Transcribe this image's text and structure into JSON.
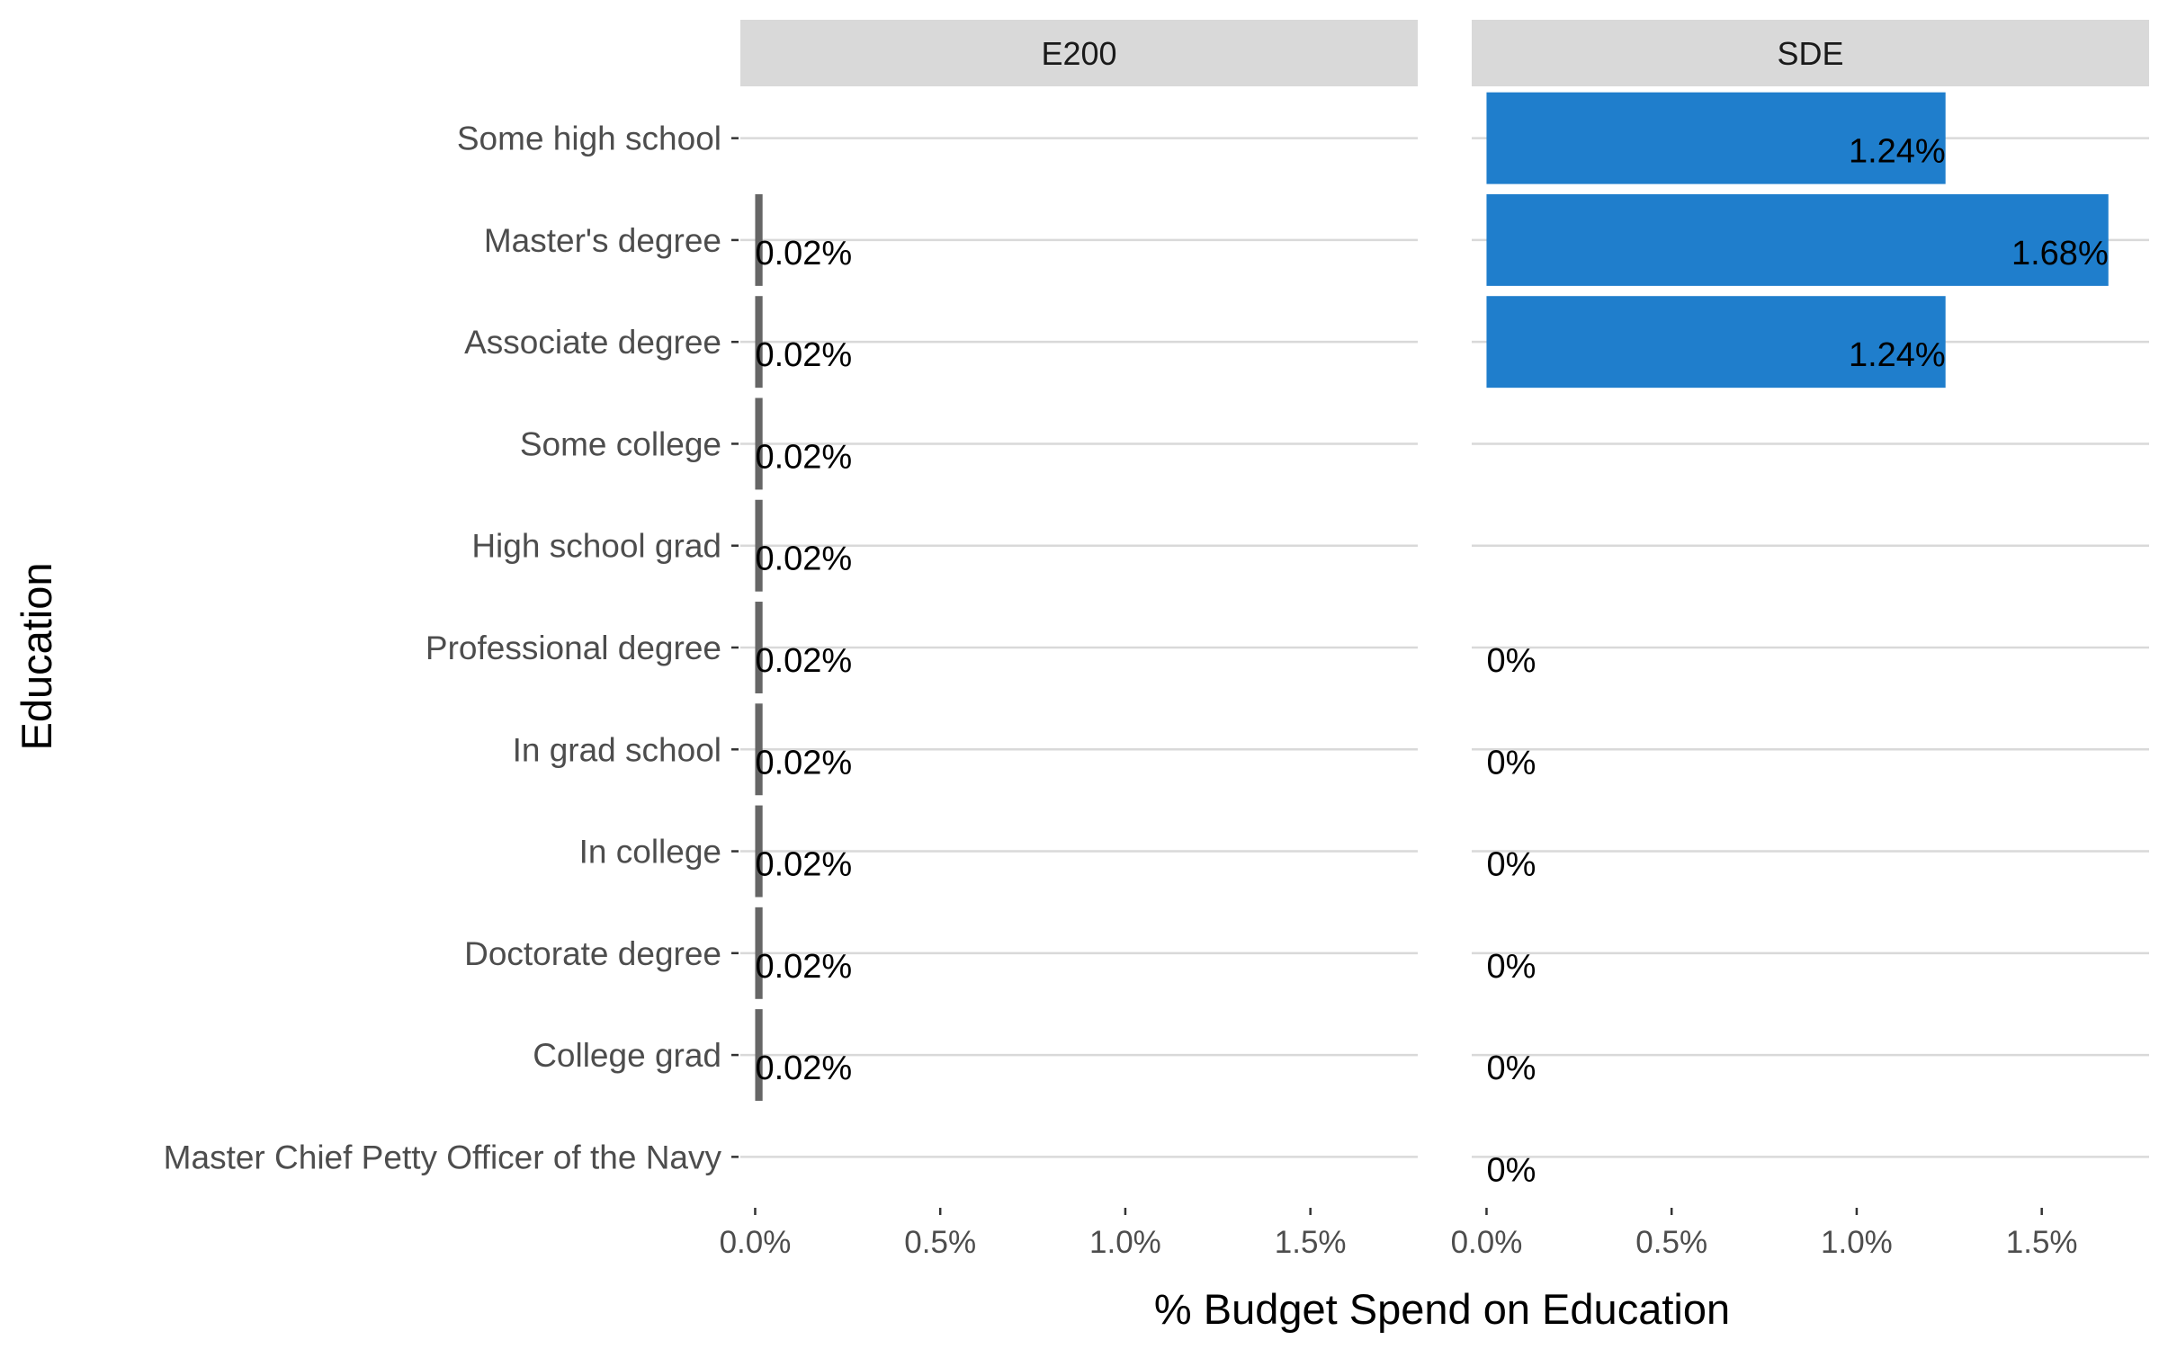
{
  "chart_data": {
    "type": "bar",
    "orientation": "horizontal",
    "xlabel": "% Budget Spend on Education",
    "ylabel": "Education",
    "xlim": [
      -0.0004,
      0.0179
    ],
    "x_ticks": [
      0,
      0.005,
      0.01,
      0.015
    ],
    "x_tick_labels": [
      "0.0%",
      "0.5%",
      "1.0%",
      "1.5%"
    ],
    "grid": "major-y",
    "categories": [
      "Some high school",
      "Master's degree",
      "Associate degree",
      "Some college",
      "High school grad",
      "Professional degree",
      "In grad school",
      "In college",
      "Doctorate degree",
      "College grad",
      "Master Chief Petty Officer of the Navy"
    ],
    "panels": [
      {
        "name": "E200",
        "color": "#666666",
        "values": [
          null,
          0.0002,
          0.0002,
          0.0002,
          0.0002,
          0.0002,
          0.0002,
          0.0002,
          0.0002,
          0.0002,
          null
        ],
        "labels": [
          "",
          "0.02%",
          "0.02%",
          "0.02%",
          "0.02%",
          "0.02%",
          "0.02%",
          "0.02%",
          "0.02%",
          "0.02%",
          ""
        ]
      },
      {
        "name": "SDE",
        "color": "#1f7ecc",
        "values": [
          0.0124,
          0.0168,
          0.0124,
          null,
          null,
          0,
          0,
          0,
          0,
          0,
          0
        ],
        "labels": [
          "1.24%",
          "1.68%",
          "1.24%",
          "",
          "",
          "0%",
          "0%",
          "0%",
          "0%",
          "0%",
          "0%"
        ]
      }
    ]
  }
}
